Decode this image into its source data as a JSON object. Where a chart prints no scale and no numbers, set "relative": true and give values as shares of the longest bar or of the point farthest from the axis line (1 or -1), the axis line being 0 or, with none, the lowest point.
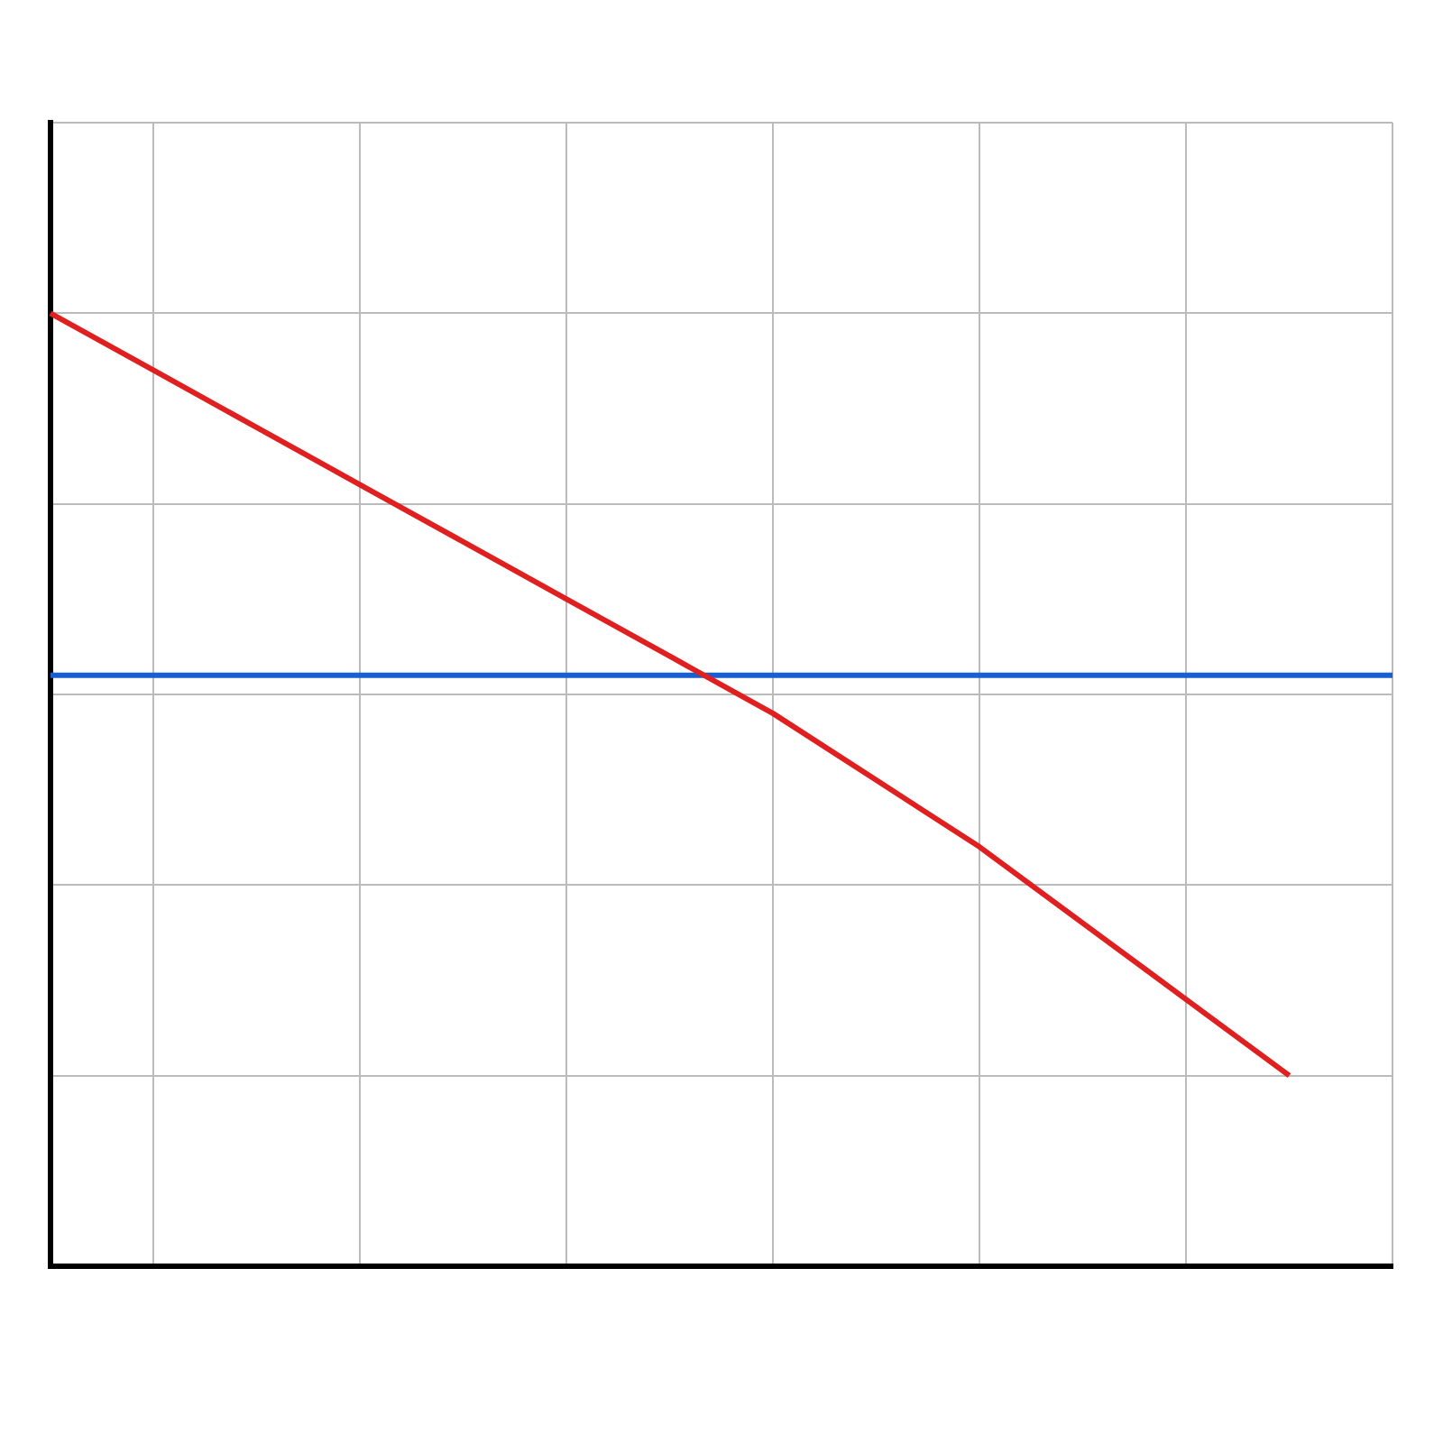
{
  "chart_data": {
    "type": "line",
    "relative": true,
    "grid": true,
    "marker": "none",
    "line_style": "solid",
    "categories": [
      null,
      null,
      null,
      null,
      null,
      null,
      null,
      null,
      null,
      null,
      null,
      null,
      null,
      null
    ],
    "series": [
      {
        "color": "#e02020",
        "values": [
          1,
          0.94,
          0.88,
          0.82,
          0.76,
          0.7,
          0.64,
          0.58,
          0.51,
          0.44,
          0.36,
          0.28,
          0.2,
          null
        ]
      },
      {
        "color": "#1a5fd0",
        "values": [
          0.62,
          0.62,
          0.62,
          0.62,
          0.62,
          0.62,
          0.62,
          0.62,
          0.62,
          0.62,
          0.62,
          0.62,
          0.62,
          0.62
        ]
      }
    ]
  }
}
